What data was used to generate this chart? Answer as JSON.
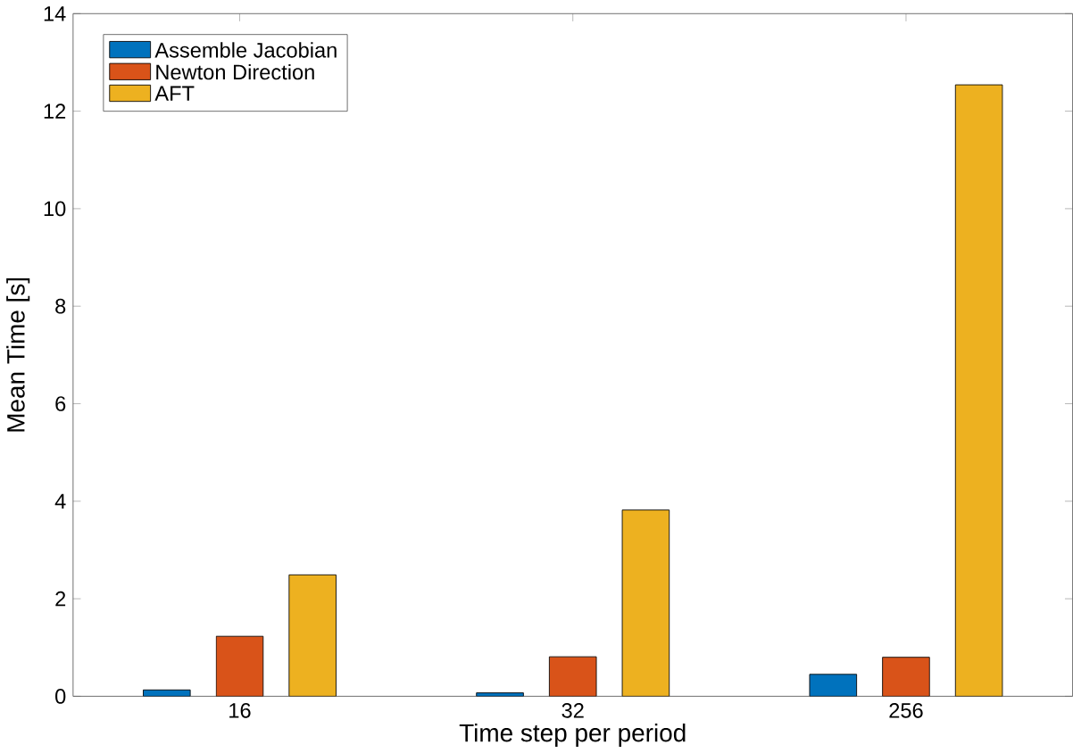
{
  "chart_data": {
    "type": "bar",
    "xlabel": "Time step per period",
    "ylabel": "Mean Time [s]",
    "categories": [
      "16",
      "32",
      "256"
    ],
    "series": [
      {
        "name": "Assemble Jacobian",
        "color": "#0072bd",
        "values": [
          0.13,
          0.07,
          0.45
        ]
      },
      {
        "name": "Newton Direction",
        "color": "#d95319",
        "values": [
          1.23,
          0.81,
          0.8
        ]
      },
      {
        "name": "AFT",
        "color": "#edb120",
        "values": [
          2.49,
          3.82,
          12.54
        ]
      }
    ],
    "ylim": [
      0,
      14
    ],
    "yticks": [
      0,
      2,
      4,
      6,
      8,
      10,
      12,
      14
    ],
    "legend": "top left",
    "grid": false
  }
}
